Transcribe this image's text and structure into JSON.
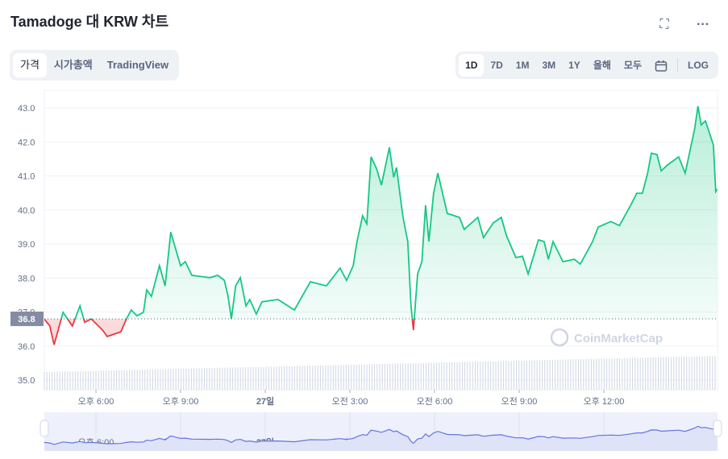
{
  "header": {
    "title": "Tamadoge 대 KRW 차트",
    "fullscreen_icon": "fullscreen-icon",
    "more_icon": "more-dots-icon"
  },
  "view_tabs": [
    {
      "label": "가격",
      "active": true
    },
    {
      "label": "시가총액",
      "active": false
    },
    {
      "label": "TradingView",
      "active": false
    }
  ],
  "ranges": [
    {
      "label": "1D",
      "active": true
    },
    {
      "label": "7D"
    },
    {
      "label": "1M"
    },
    {
      "label": "3M"
    },
    {
      "label": "1Y"
    },
    {
      "label": "올해"
    },
    {
      "label": "모두"
    }
  ],
  "calendar_icon": "calendar-icon",
  "log_label": "LOG",
  "watermark": "CoinMarketCap",
  "colors": {
    "up": "#16c784",
    "down": "#ea3943",
    "navigator": "#6574e0"
  },
  "chart_data": {
    "type": "line",
    "reference_price": 36.8,
    "reference_label": "36.8",
    "ylim": [
      34.8,
      43.5
    ],
    "yticks": [
      "35.0",
      "36.0",
      "37.0",
      "38.0",
      "39.0",
      "40.0",
      "41.0",
      "42.0",
      "43.0"
    ],
    "xticks": [
      {
        "label": "오후 6:00",
        "time": "18:00"
      },
      {
        "label": "오후 9:00",
        "time": "21:00"
      },
      {
        "label": "27일",
        "time": "00:00",
        "bold": true
      },
      {
        "label": "오전 3:00",
        "time": "03:00"
      },
      {
        "label": "오전 6:00",
        "time": "06:00"
      },
      {
        "label": "오전 9:00",
        "time": "09:00"
      },
      {
        "label": "오후 12:00",
        "time": "12:00"
      }
    ],
    "grid": true,
    "series": [
      {
        "points": [
          [
            "16:10",
            36.8
          ],
          [
            "16:22",
            36.59
          ],
          [
            "16:31",
            36.04
          ],
          [
            "16:50",
            36.99
          ],
          [
            "17:10",
            36.59
          ],
          [
            "17:26",
            37.18
          ],
          [
            "17:36",
            36.7
          ],
          [
            "17:50",
            36.8
          ],
          [
            "18:14",
            36.47
          ],
          [
            "18:24",
            36.28
          ],
          [
            "18:53",
            36.42
          ],
          [
            "19:05",
            36.8
          ],
          [
            "19:15",
            37.06
          ],
          [
            "19:27",
            36.89
          ],
          [
            "19:41",
            36.99
          ],
          [
            "19:48",
            37.65
          ],
          [
            "19:58",
            37.46
          ],
          [
            "20:15",
            38.36
          ],
          [
            "20:27",
            37.77
          ],
          [
            "20:39",
            39.35
          ],
          [
            "20:50",
            38.83
          ],
          [
            "21:00",
            38.36
          ],
          [
            "21:10",
            38.48
          ],
          [
            "21:24",
            38.08
          ],
          [
            "22:02",
            38.01
          ],
          [
            "22:19",
            38.08
          ],
          [
            "22:33",
            37.93
          ],
          [
            "22:41",
            37.46
          ],
          [
            "22:48",
            36.8
          ],
          [
            "22:57",
            37.77
          ],
          [
            "23:07",
            38.01
          ],
          [
            "23:19",
            37.18
          ],
          [
            "23:27",
            37.37
          ],
          [
            "23:41",
            36.94
          ],
          [
            "23:53",
            37.3
          ],
          [
            "00:27",
            37.37
          ],
          [
            "01:02",
            37.06
          ],
          [
            "01:36",
            37.89
          ],
          [
            "02:10",
            37.77
          ],
          [
            "02:39",
            38.29
          ],
          [
            "02:53",
            37.93
          ],
          [
            "03:07",
            38.36
          ],
          [
            "03:15",
            39.07
          ],
          [
            "03:27",
            39.83
          ],
          [
            "03:36",
            39.59
          ],
          [
            "03:45",
            41.56
          ],
          [
            "03:57",
            41.2
          ],
          [
            "04:07",
            40.73
          ],
          [
            "04:24",
            41.84
          ],
          [
            "04:33",
            40.96
          ],
          [
            "04:39",
            41.25
          ],
          [
            "04:53",
            39.78
          ],
          [
            "05:03",
            39.07
          ],
          [
            "05:10",
            37.18
          ],
          [
            "05:15",
            36.47
          ],
          [
            "05:24",
            38.12
          ],
          [
            "05:33",
            38.48
          ],
          [
            "05:41",
            40.14
          ],
          [
            "05:48",
            39.07
          ],
          [
            "05:58",
            40.49
          ],
          [
            "06:07",
            41.08
          ],
          [
            "06:27",
            39.9
          ],
          [
            "06:53",
            39.78
          ],
          [
            "07:03",
            39.43
          ],
          [
            "07:32",
            39.78
          ],
          [
            "07:44",
            39.19
          ],
          [
            "08:05",
            39.62
          ],
          [
            "08:22",
            39.78
          ],
          [
            "08:33",
            39.24
          ],
          [
            "08:53",
            38.6
          ],
          [
            "09:07",
            38.64
          ],
          [
            "09:19",
            38.12
          ],
          [
            "09:41",
            39.12
          ],
          [
            "09:53",
            39.07
          ],
          [
            "10:02",
            38.55
          ],
          [
            "10:12",
            39.07
          ],
          [
            "10:33",
            38.48
          ],
          [
            "10:57",
            38.55
          ],
          [
            "11:10",
            38.41
          ],
          [
            "11:36",
            39.07
          ],
          [
            "11:48",
            39.5
          ],
          [
            "12:15",
            39.66
          ],
          [
            "12:33",
            39.54
          ],
          [
            "12:57",
            40.14
          ],
          [
            "13:10",
            40.49
          ],
          [
            "13:22",
            40.49
          ],
          [
            "13:33",
            41.08
          ],
          [
            "13:41",
            41.67
          ],
          [
            "13:53",
            41.63
          ],
          [
            "14:02",
            41.15
          ],
          [
            "14:15",
            41.32
          ],
          [
            "14:39",
            41.56
          ],
          [
            "14:53",
            41.08
          ],
          [
            "15:13",
            42.38
          ],
          [
            "15:20",
            43.05
          ],
          [
            "15:27",
            42.5
          ],
          [
            "15:36",
            42.62
          ],
          [
            "15:53",
            41.91
          ],
          [
            "15:58",
            40.54
          ],
          [
            "16:01",
            40.61
          ]
        ]
      }
    ]
  }
}
